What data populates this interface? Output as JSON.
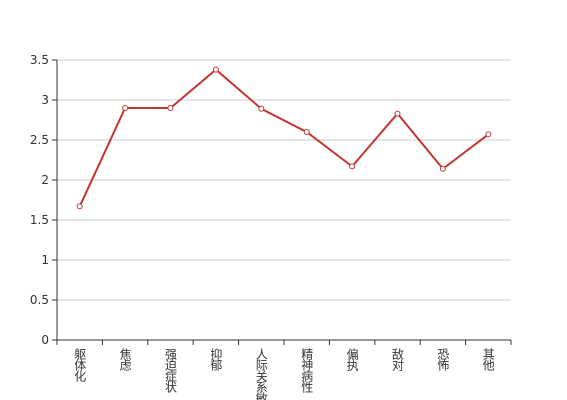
{
  "chart_data": {
    "type": "line",
    "categories": [
      "躯体化",
      "焦虑",
      "强迫症状",
      "抑郁",
      "人际关系敏感",
      "精神病性",
      "偏执",
      "敌对",
      "恐怖",
      "其他"
    ],
    "values": [
      1.67,
      2.9,
      2.9,
      3.38,
      2.89,
      2.6,
      2.17,
      2.83,
      2.14,
      2.57
    ],
    "color": "#c23531",
    "ylim": [
      0,
      3.5
    ],
    "yticks": [
      0,
      0.5,
      1,
      1.5,
      2,
      2.5,
      3,
      3.5
    ],
    "grid": true
  }
}
